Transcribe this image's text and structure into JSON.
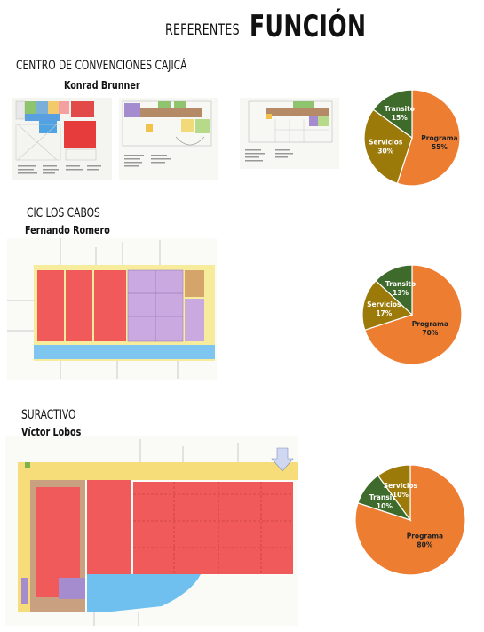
{
  "header": {
    "subtitle": "REFERENTES",
    "title": "FUNCIÓN"
  },
  "sections": [
    {
      "title": "CENTRO DE CONVENCIONES CAJICÁ",
      "author": "Konrad Brunner"
    },
    {
      "title": "CIC LOS CABOS",
      "author": "Fernando Romero"
    },
    {
      "title": "SURACTIVO",
      "author": "Víctor Lobos"
    }
  ],
  "colors": {
    "programa": "#ED7D31",
    "servicios": "#9C7A0A",
    "transito": "#3E6B2B"
  },
  "chart_data": [
    {
      "type": "pie",
      "categories": [
        "Programa",
        "Servicios",
        "Transito"
      ],
      "values": [
        55,
        30,
        15
      ],
      "labels": [
        "55%",
        "30%",
        "15%"
      ]
    },
    {
      "type": "pie",
      "categories": [
        "Programa",
        "Servicios",
        "Transito"
      ],
      "values": [
        70,
        17,
        13
      ],
      "labels": [
        "70%",
        "17%",
        "13%"
      ]
    },
    {
      "type": "pie",
      "categories": [
        "Programa",
        "Transito",
        "Servicios"
      ],
      "values": [
        80,
        10,
        10
      ],
      "labels": [
        "80%",
        "10%",
        "10%"
      ]
    }
  ]
}
